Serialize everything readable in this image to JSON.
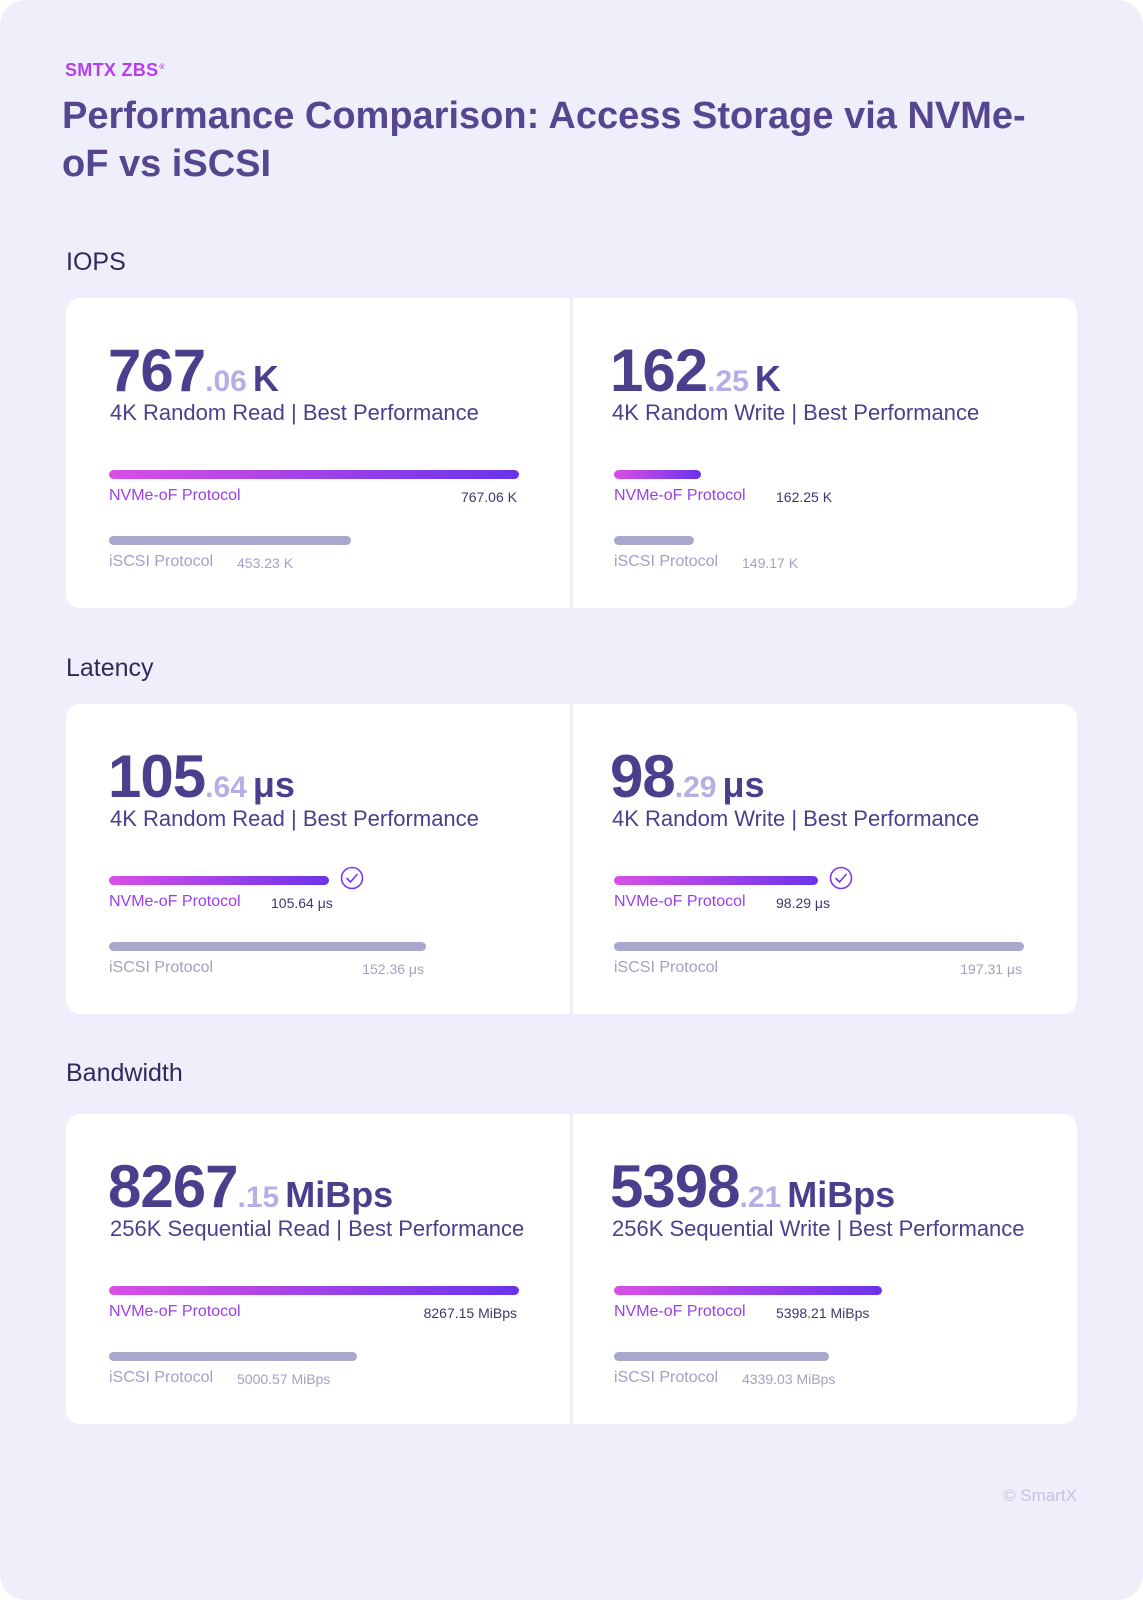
{
  "header": {
    "brand": "SMTX ZBS",
    "brand_mark": "®",
    "title": "Performance Comparison: Access Storage via NVMe-oF vs iSCSI"
  },
  "colors": {
    "nvme_gradient": [
      "#d94fe6",
      "#6a34e9"
    ],
    "iscsi": "#a9a7cc",
    "text_dark": "#4b3f8d",
    "decimal": "#b8aee6"
  },
  "sections": [
    {
      "label": "IOPS",
      "cards": [
        {
          "int": "767",
          "dec": ".06",
          "unit": "K",
          "subtitle": "4K Random Read | Best Performance",
          "nvme_label": "NVMe-oF Protocol",
          "nvme_value": 767.06,
          "nvme_text": "767.06 K",
          "iscsi_label": "iSCSI Protocol",
          "iscsi_value": 453.23,
          "iscsi_text": "453.23 K",
          "check": false
        },
        {
          "int": "162",
          "dec": ".25",
          "unit": "K",
          "subtitle": "4K Random Write | Best Performance",
          "nvme_label": "NVMe-oF Protocol",
          "nvme_value": 162.25,
          "nvme_text": "162.25 K",
          "iscsi_label": "iSCSI Protocol",
          "iscsi_value": 149.17,
          "iscsi_text": "149.17 K",
          "check": false
        }
      ]
    },
    {
      "label": "Latency",
      "cards": [
        {
          "int": "105",
          "dec": ".64",
          "unit": "μs",
          "subtitle": "4K Random Read | Best Performance",
          "nvme_label": "NVMe-oF Protocol",
          "nvme_value": 105.64,
          "nvme_text": "105.64 μs",
          "iscsi_label": "iSCSI Protocol",
          "iscsi_value": 152.36,
          "iscsi_text": "152.36 μs",
          "check": true
        },
        {
          "int": "98",
          "dec": ".29",
          "unit": "μs",
          "subtitle": "4K Random Write | Best Performance",
          "nvme_label": "NVMe-oF Protocol",
          "nvme_value": 98.29,
          "nvme_text": "98.29 μs",
          "iscsi_label": "iSCSI Protocol",
          "iscsi_value": 197.31,
          "iscsi_text": "197.31 μs",
          "check": true
        }
      ]
    },
    {
      "label": "Bandwidth",
      "cards": [
        {
          "int": "8267",
          "dec": ".15",
          "unit": "MiBps",
          "subtitle": "256K Sequential Read | Best Performance",
          "nvme_label": "NVMe-oF Protocol",
          "nvme_value": 8267.15,
          "nvme_text": "8267.15 MiBps",
          "iscsi_label": "iSCSI Protocol",
          "iscsi_value": 5000.57,
          "iscsi_text": "5000.57 MiBps",
          "check": false
        },
        {
          "int": "5398",
          "dec": ".21",
          "unit": "MiBps",
          "subtitle": "256K Sequential Write | Best Performance",
          "nvme_label": "NVMe-oF Protocol",
          "nvme_value": 5398.21,
          "nvme_text": "5398.21 MiBps",
          "iscsi_label": "iSCSI Protocol",
          "iscsi_value": 4339.03,
          "iscsi_text": "4339.03 MiBps",
          "check": false
        }
      ]
    }
  ],
  "chart_data": [
    {
      "type": "bar",
      "title": "IOPS",
      "scale_max": 767.06,
      "categories": [
        "4K Random Read",
        "4K Random Write"
      ],
      "series": [
        {
          "name": "NVMe-oF Protocol",
          "values": [
            767.06,
            162.25
          ]
        },
        {
          "name": "iSCSI Protocol",
          "values": [
            453.23,
            149.17
          ]
        }
      ]
    },
    {
      "type": "bar",
      "title": "Latency",
      "scale_max": 197.31,
      "categories": [
        "4K Random Read",
        "4K Random Write"
      ],
      "series": [
        {
          "name": "NVMe-oF Protocol",
          "values": [
            105.64,
            98.29
          ]
        },
        {
          "name": "iSCSI Protocol",
          "values": [
            152.36,
            197.31
          ]
        }
      ]
    },
    {
      "type": "bar",
      "title": "Bandwidth",
      "scale_max": 8267.15,
      "categories": [
        "256K Sequential Read",
        "256K Sequential Write"
      ],
      "series": [
        {
          "name": "NVMe-oF Protocol",
          "values": [
            8267.15,
            5398.21
          ]
        },
        {
          "name": "iSCSI Protocol",
          "values": [
            5000.57,
            4339.03
          ]
        }
      ]
    }
  ],
  "footer": {
    "copyright": "© SmartX"
  }
}
